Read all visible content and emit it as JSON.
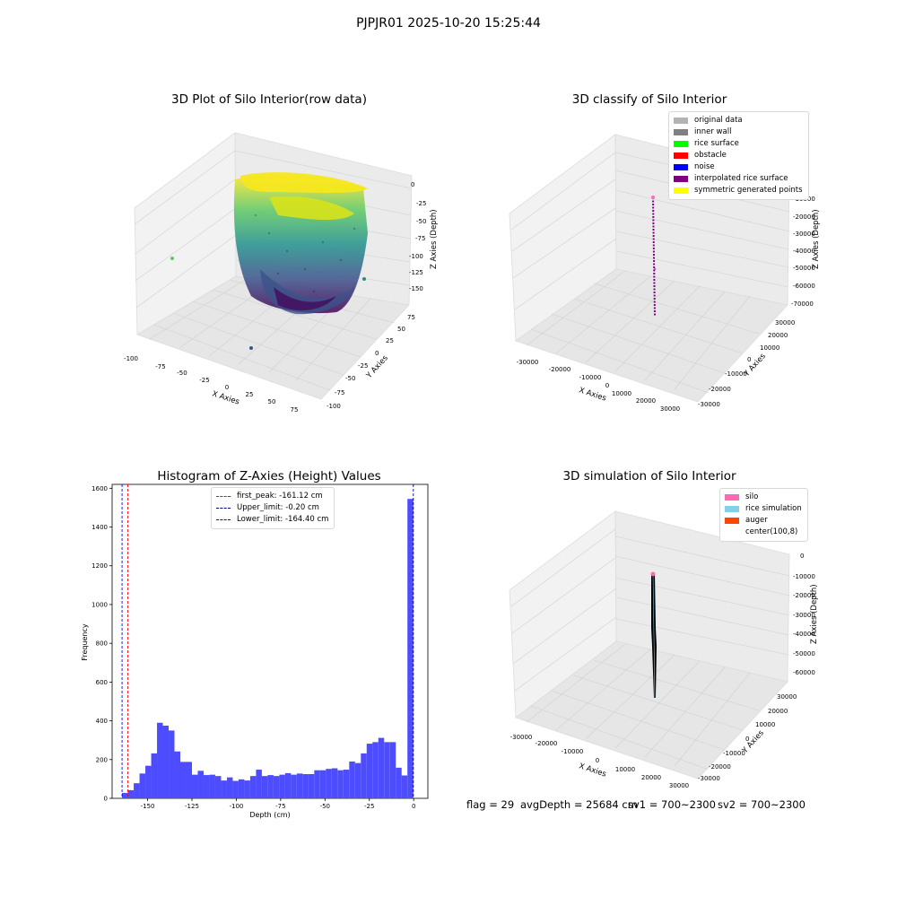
{
  "figure": {
    "title": "PJPJR01 2025-10-20 15:25:44",
    "status": {
      "flag": "flag = 29",
      "avg_depth": "avgDepth = 25684 cm",
      "sv1": "sv1 = 700~2300",
      "sv2": "sv2 = 700~2300"
    }
  },
  "chart_data": [
    {
      "type": "scatter",
      "title": "3D Plot of Silo Interior(row data)",
      "xlabel": "X Axies",
      "ylabel": "Y Axies",
      "zlabel": "Z Axies (Depth)",
      "x_ticks": [
        "-100",
        "-75",
        "-50",
        "-25",
        "0",
        "25",
        "50",
        "75"
      ],
      "y_ticks": [
        "-100",
        "-75",
        "-50",
        "-25",
        "0",
        "25",
        "50",
        "75"
      ],
      "z_ticks": [
        "0",
        "-25",
        "-50",
        "-75",
        "-100",
        "-125",
        "-150"
      ],
      "xlim": [
        -100,
        75
      ],
      "ylim": [
        -100,
        75
      ],
      "zlim": [
        -165,
        0
      ],
      "colormap": "viridis",
      "description_points": "dense cylindrical point cloud of silo wall and floor"
    },
    {
      "type": "scatter",
      "title": "3D classify of Silo Interior",
      "xlabel": "X Axies",
      "ylabel": "Y Axies",
      "zlabel": "Z Axies (Depth)",
      "x_ticks": [
        "-30000",
        "-20000",
        "-10000",
        "0",
        "10000",
        "20000",
        "30000"
      ],
      "y_ticks": [
        "-30000",
        "-20000",
        "-10000",
        "0",
        "10000",
        "20000",
        "30000"
      ],
      "z_ticks": [
        "0",
        "-10000",
        "-20000",
        "-30000",
        "-40000",
        "-50000",
        "-60000",
        "-70000"
      ],
      "legend": [
        {
          "label": "original data",
          "color": "#b3b3b3"
        },
        {
          "label": "inner wall",
          "color": "#808080"
        },
        {
          "label": "rice surface",
          "color": "#00ff00"
        },
        {
          "label": "obstacle",
          "color": "#ff0000"
        },
        {
          "label": "noise",
          "color": "#0000ff"
        },
        {
          "label": "interpolated rice surface",
          "color": "#800080"
        },
        {
          "label": "symmetric generated points",
          "color": "#ffff00"
        }
      ]
    },
    {
      "type": "bar",
      "title": "Histogram of Z-Axies (Height) Values",
      "xlabel": "Depth (cm)",
      "ylabel": "Frequency",
      "xlim": [
        -170,
        8
      ],
      "ylim": [
        0,
        1620
      ],
      "x_ticks": [
        "-150",
        "-125",
        "-100",
        "-75",
        "-50",
        "-25",
        "0"
      ],
      "y_ticks": [
        "0",
        "200",
        "400",
        "600",
        "800",
        "1000",
        "1200",
        "1400",
        "1600"
      ],
      "bin_edges": [
        -164.4,
        -161.12,
        -157.83,
        -154.55,
        -151.27,
        -147.98,
        -144.7,
        -141.42,
        -138.13,
        -134.85,
        -131.57,
        -128.28,
        -125.0,
        -121.72,
        -118.43,
        -115.15,
        -111.87,
        -108.58,
        -105.3,
        -102.02,
        -98.73,
        -95.45,
        -92.17,
        -88.88,
        -85.6,
        -82.32,
        -79.03,
        -75.75,
        -72.47,
        -69.18,
        -65.9,
        -62.62,
        -59.33,
        -56.05,
        -52.77,
        -49.48,
        -46.2,
        -42.92,
        -39.63,
        -36.35,
        -33.07,
        -29.78,
        -26.5,
        -23.22,
        -19.93,
        -16.65,
        -13.37,
        -10.08,
        -6.8,
        -3.52,
        -0.2
      ],
      "values": [
        28,
        42,
        78,
        128,
        168,
        232,
        390,
        375,
        350,
        242,
        188,
        188,
        122,
        142,
        120,
        122,
        115,
        92,
        108,
        90,
        98,
        92,
        115,
        148,
        115,
        120,
        115,
        122,
        130,
        122,
        128,
        125,
        125,
        145,
        145,
        152,
        155,
        145,
        148,
        190,
        182,
        232,
        282,
        290,
        312,
        290,
        290,
        158,
        118,
        1545
      ],
      "bar_color": "#4d4dff",
      "lines": [
        {
          "label": "first_peak: -161.12 cm",
          "x": -161.12,
          "color": "#ff0000"
        },
        {
          "label": "Upper_limit: -0.20 cm",
          "x": -0.2,
          "color": "#00008b"
        },
        {
          "label": "Lower_limit: -164.40 cm",
          "x": -164.4,
          "color": "#0000ff"
        }
      ],
      "legend_position": "top-center"
    },
    {
      "type": "scatter",
      "title": "3D simulation of Silo Interior",
      "xlabel": "X Axies",
      "ylabel": "Y Axies",
      "zlabel": "Z Axies (Depth)",
      "x_ticks": [
        "-30000",
        "-20000",
        "-10000",
        "0",
        "10000",
        "20000",
        "30000"
      ],
      "y_ticks": [
        "-30000",
        "-20000",
        "-10000",
        "0",
        "10000",
        "20000",
        "30000"
      ],
      "z_ticks": [
        "0",
        "-10000",
        "-20000",
        "-30000",
        "-40000",
        "-50000",
        "-60000"
      ],
      "legend": [
        {
          "label": "silo",
          "color": "#ff69b4"
        },
        {
          "label": "rice simulation",
          "color": "#87ceeb"
        },
        {
          "label": "auger",
          "color": "#ff4500"
        },
        {
          "label": "center(100,8)",
          "color": "#ffffff"
        }
      ]
    }
  ]
}
